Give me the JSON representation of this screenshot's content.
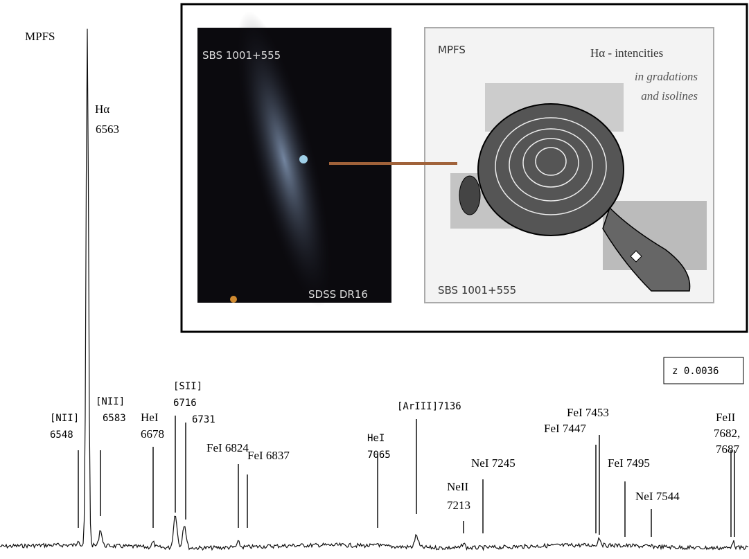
{
  "spectrum": {
    "instrument": "MPFS",
    "redshift": "z 0.0036",
    "lines": [
      {
        "label": [
          "[NII]",
          "6548"
        ]
      },
      {
        "label": [
          "Hα",
          "6563"
        ]
      },
      {
        "label": [
          "[NII]",
          "6583"
        ]
      },
      {
        "label": [
          "HeI",
          "6678"
        ]
      },
      {
        "label": [
          "[SII]",
          "6716",
          "6731"
        ]
      },
      {
        "label": [
          "FeI 6824"
        ]
      },
      {
        "label": [
          "FeI 6837"
        ]
      },
      {
        "label": [
          "HeI",
          "7065"
        ]
      },
      {
        "label": [
          "[ArIII]7136"
        ]
      },
      {
        "label": [
          "NeII",
          "7213"
        ]
      },
      {
        "label": [
          "NeI 7245"
        ]
      },
      {
        "label": [
          "FeI 7447"
        ]
      },
      {
        "label": [
          "FeI 7453"
        ]
      },
      {
        "label": [
          "FeI 7495"
        ]
      },
      {
        "label": [
          "NeI 7544"
        ]
      },
      {
        "label": [
          "FeII",
          "7682,",
          "7687"
        ]
      }
    ]
  },
  "inset": {
    "optical": {
      "object": "SBS 1001+555",
      "survey": "SDSS DR16"
    },
    "map": {
      "instrument": "MPFS",
      "title": "Hα - intencities",
      "subtitle": [
        "in gradations",
        "and isolines"
      ],
      "object": "SBS 1001+555"
    }
  }
}
